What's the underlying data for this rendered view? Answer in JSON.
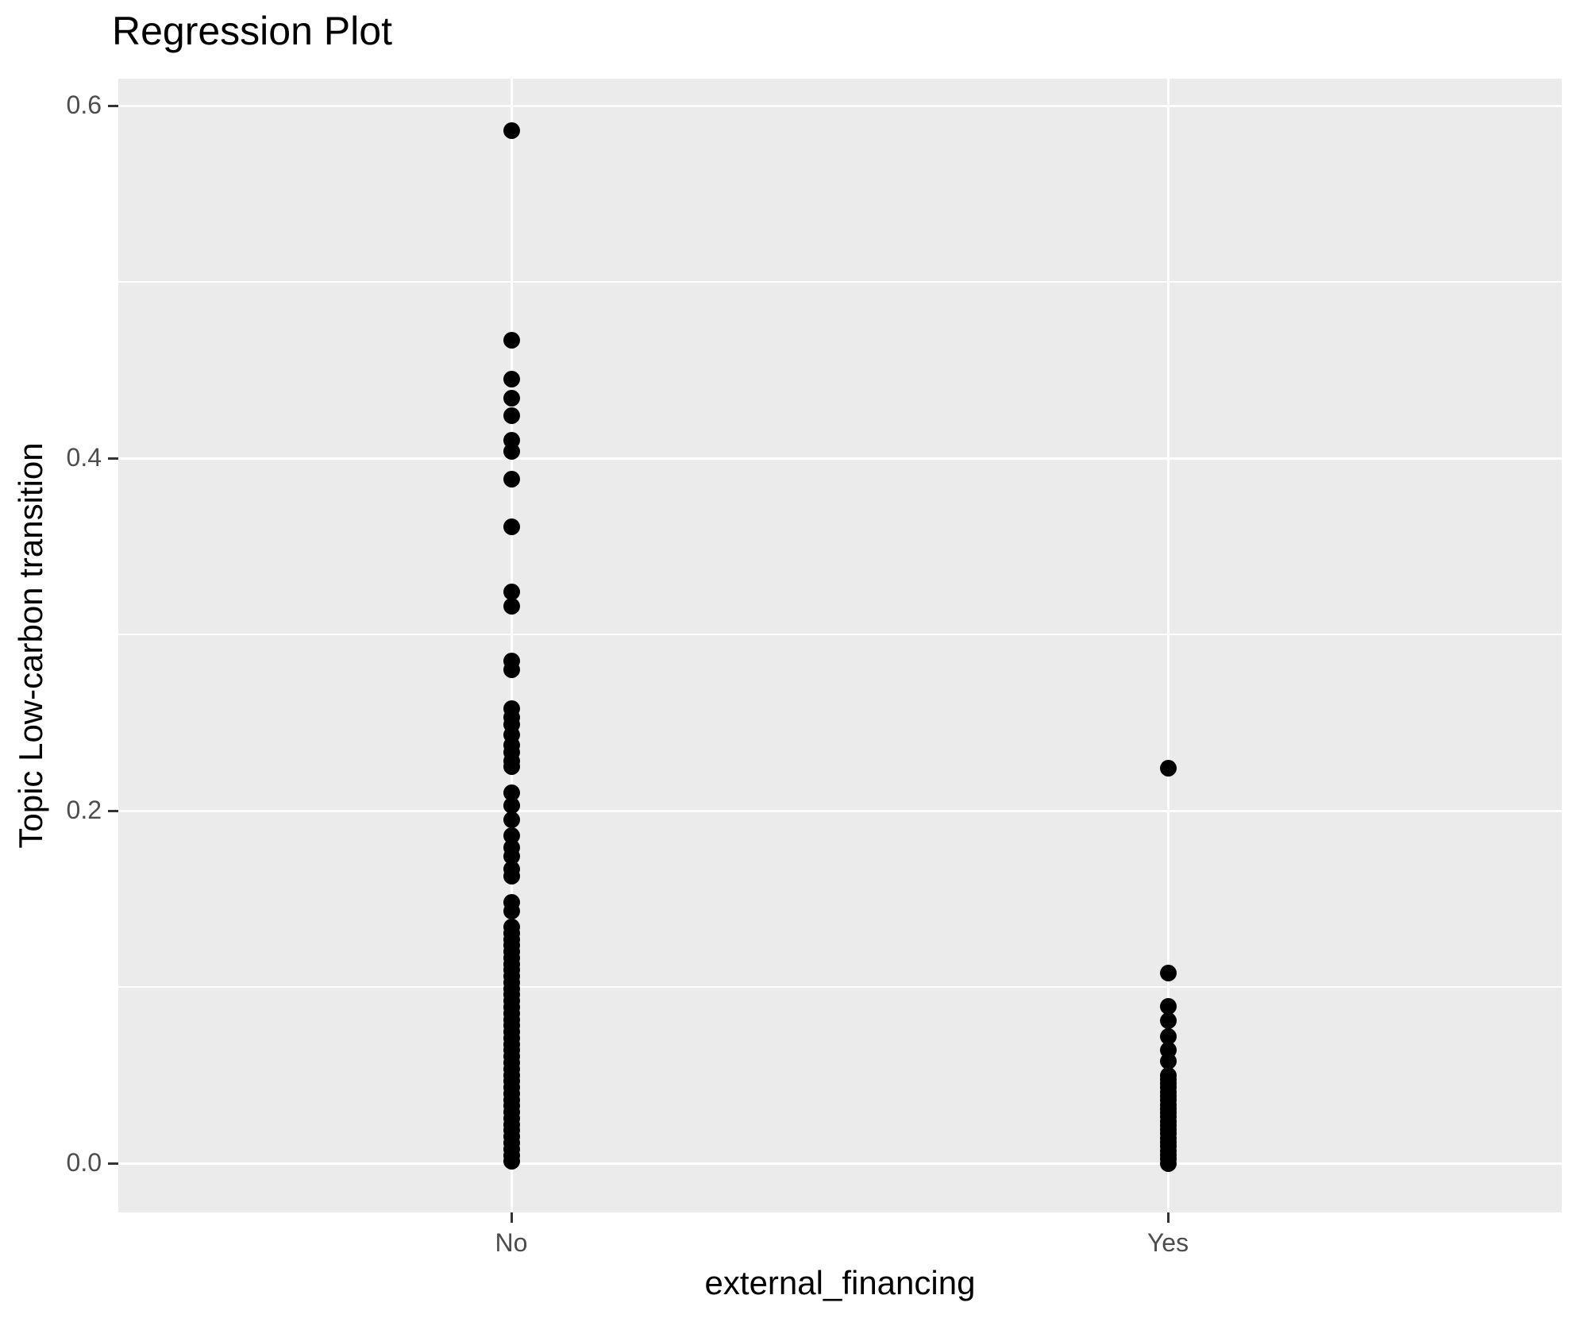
{
  "title": "Regression Plot",
  "chart_data": {
    "type": "scatter",
    "title": "Regression Plot",
    "xlabel": "external_financing",
    "ylabel": "Topic Low-carbon transition",
    "categories": [
      "No",
      "Yes"
    ],
    "y_ticks": [
      0.0,
      0.2,
      0.4,
      0.6
    ],
    "y_tick_labels": [
      "0.0",
      "0.2",
      "0.4",
      "0.6"
    ],
    "y_minor_ticks": [
      0.1,
      0.3,
      0.5
    ],
    "ylim": [
      -0.028,
      0.615
    ],
    "grid": true,
    "legend": "none",
    "point_color": "#000000",
    "series": [
      {
        "name": "No",
        "values": [
          0.586,
          0.467,
          0.445,
          0.434,
          0.424,
          0.41,
          0.404,
          0.388,
          0.361,
          0.324,
          0.316,
          0.285,
          0.28,
          0.258,
          0.253,
          0.249,
          0.243,
          0.237,
          0.233,
          0.228,
          0.225,
          0.21,
          0.203,
          0.195,
          0.186,
          0.179,
          0.174,
          0.167,
          0.163,
          0.148,
          0.143,
          0.134,
          0.1305,
          0.127,
          0.1235,
          0.12,
          0.1165,
          0.113,
          0.1095,
          0.106,
          0.1025,
          0.099,
          0.0955,
          0.092,
          0.0885,
          0.085,
          0.0815,
          0.078,
          0.0745,
          0.071,
          0.0675,
          0.064,
          0.0605,
          0.057,
          0.0535,
          0.05,
          0.0465,
          0.043,
          0.0395,
          0.036,
          0.0325,
          0.029,
          0.0255,
          0.022,
          0.0185,
          0.015,
          0.0115,
          0.008,
          0.0045,
          0.001
        ]
      },
      {
        "name": "Yes",
        "values": [
          0.224,
          0.108,
          0.089,
          0.081,
          0.072,
          0.064,
          0.058,
          0.05,
          0.0476,
          0.0452,
          0.0429,
          0.0405,
          0.0381,
          0.0357,
          0.0333,
          0.031,
          0.0286,
          0.0262,
          0.0238,
          0.0214,
          0.019,
          0.0167,
          0.0143,
          0.0119,
          0.0095,
          0.0071,
          0.0048,
          0.0024,
          0.0
        ]
      }
    ]
  },
  "style": {
    "panel_bg": "#EBEBEB",
    "grid_color": "#FFFFFF",
    "tick_color": "#333333",
    "tick_text_color": "#4D4D4D",
    "title_color": "#000000"
  }
}
